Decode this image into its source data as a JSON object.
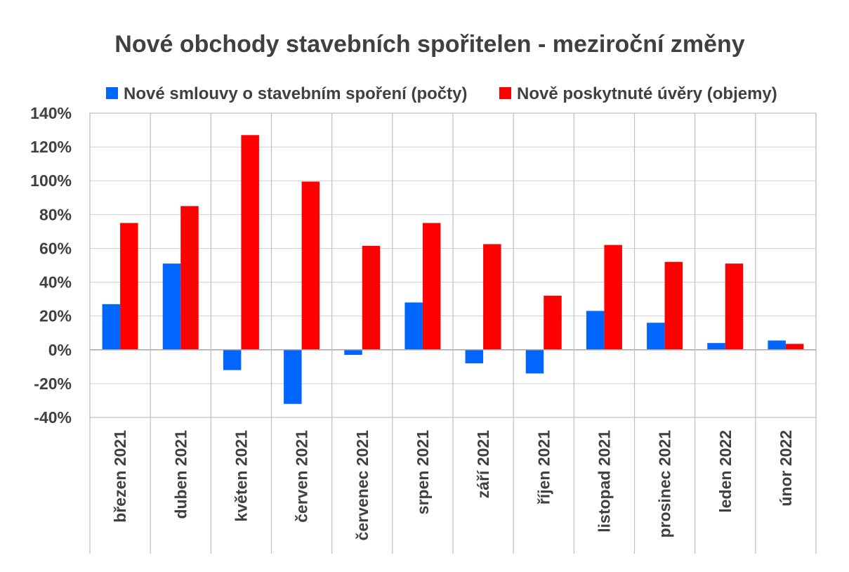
{
  "chart_data": {
    "type": "bar",
    "title": "Nové obchody stavebních spořitelen - meziroční změny",
    "categories": [
      "březen 2021",
      "duben 2021",
      "květen 2021",
      "červen 2021",
      "červenec 2021",
      "srpen 2021",
      "září 2021",
      "říjen 2021",
      "listopad 2021",
      "prosinec 2021",
      "leden 2022",
      "únor 2022"
    ],
    "series": [
      {
        "name": "Nové smlouvy o stavebním spoření (počty)",
        "color": "#0066ff",
        "values": [
          0.27,
          0.51,
          -0.12,
          -0.32,
          -0.03,
          0.28,
          -0.08,
          -0.14,
          0.23,
          0.16,
          0.04,
          0.055
        ]
      },
      {
        "name": "Nově poskytnuté úvěry (objemy)",
        "color": "#ff0000",
        "values": [
          0.75,
          0.85,
          1.27,
          0.995,
          0.615,
          0.75,
          0.625,
          0.32,
          0.62,
          0.52,
          0.51,
          0.035
        ]
      }
    ],
    "ylim": [
      -0.4,
      1.4
    ],
    "yticks": [
      "140%",
      "120%",
      "100%",
      "80%",
      "60%",
      "40%",
      "20%",
      "0%",
      "-20%",
      "-40%"
    ],
    "ytick_values": [
      1.4,
      1.2,
      1.0,
      0.8,
      0.6,
      0.4,
      0.2,
      0.0,
      -0.2,
      -0.4
    ],
    "legend_position": "top",
    "grid": true,
    "xlabel": "",
    "ylabel": ""
  }
}
